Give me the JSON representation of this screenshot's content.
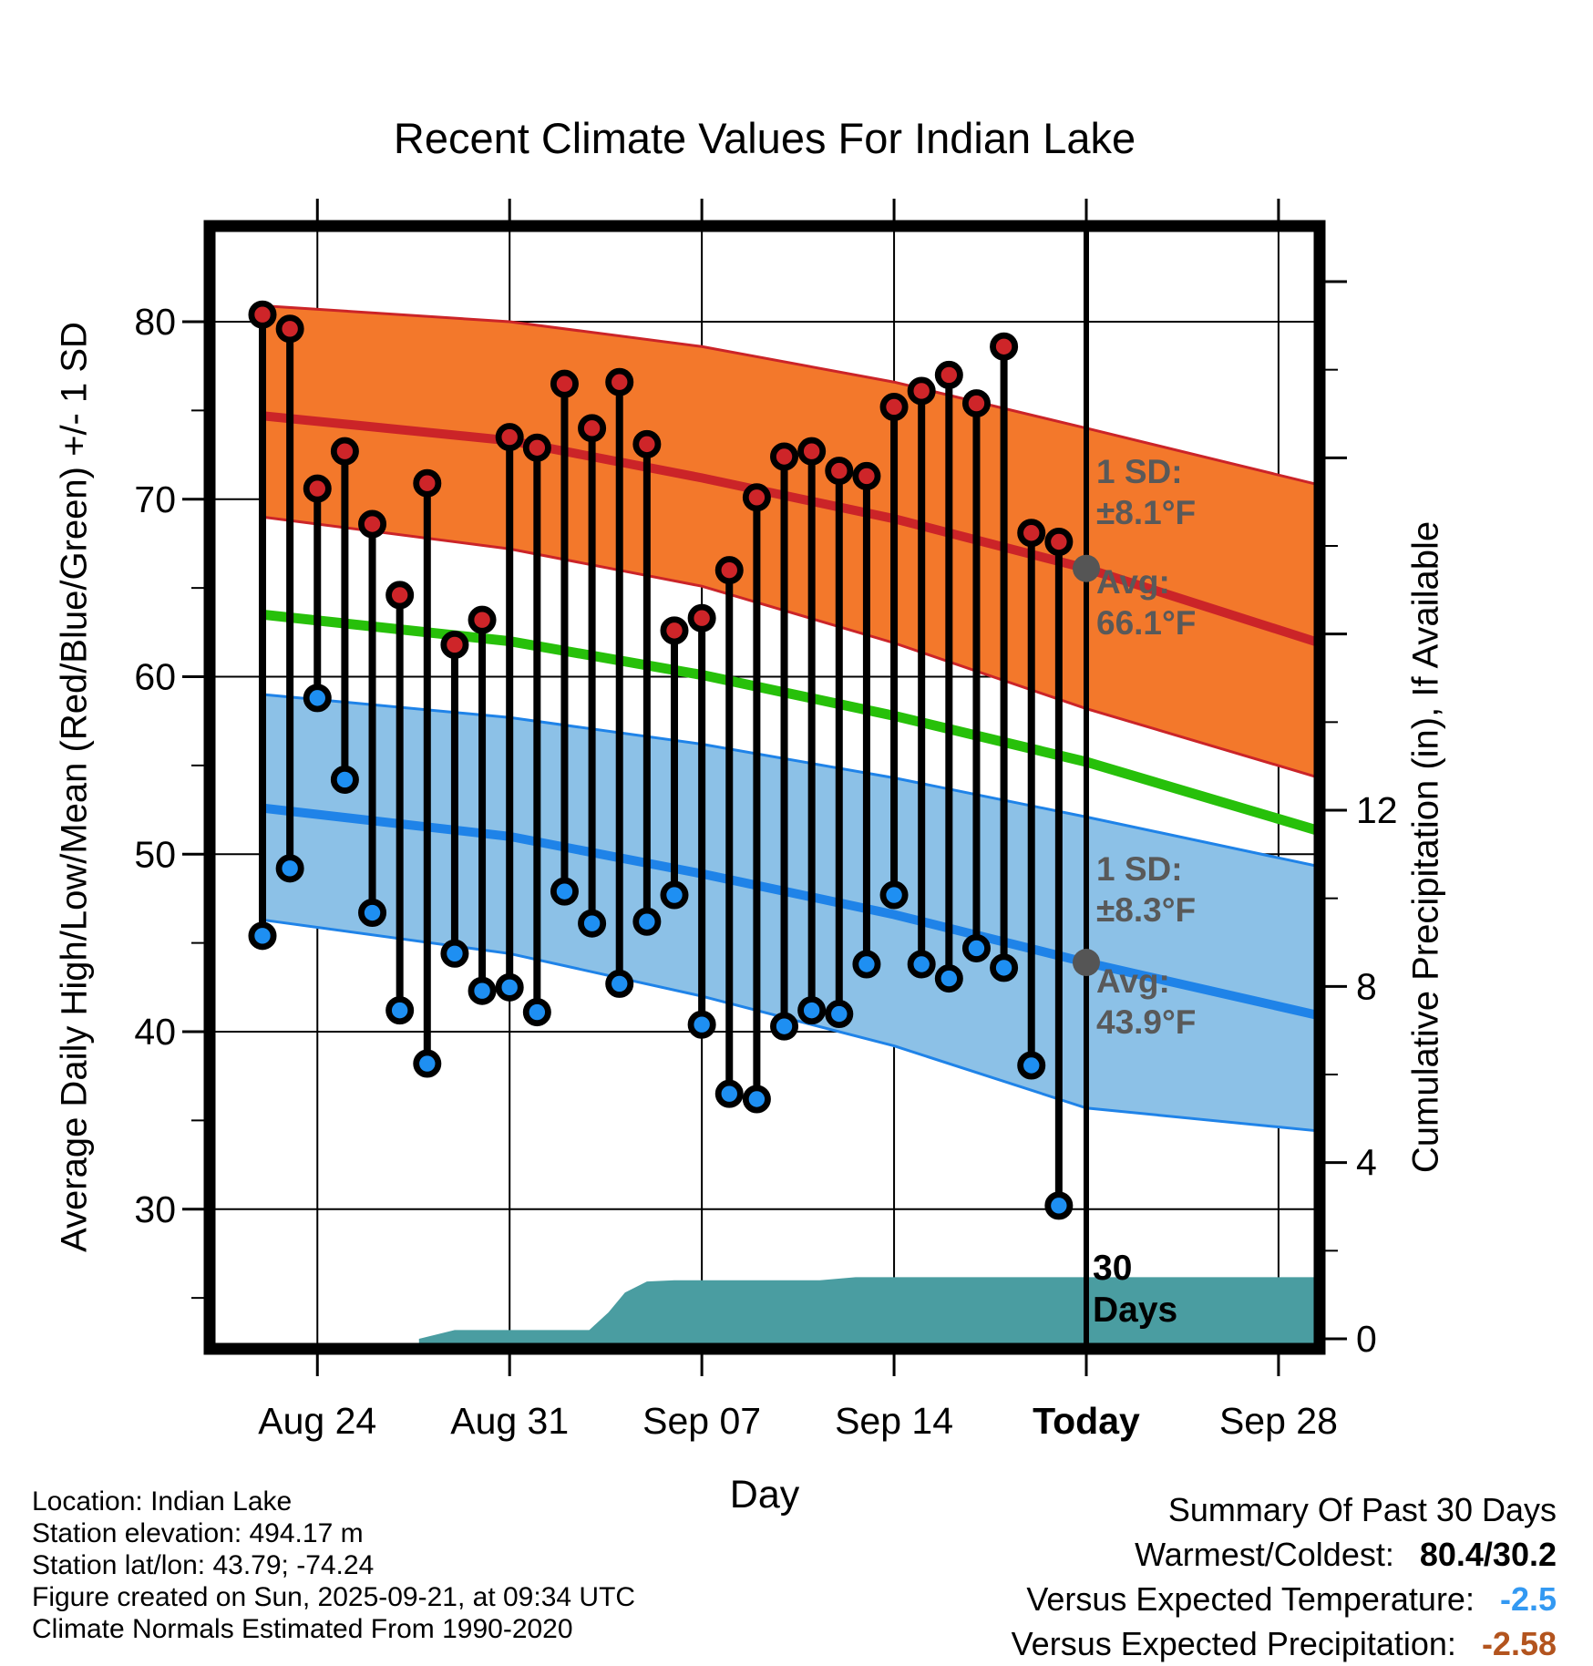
{
  "title": "Recent Climate Values For Indian Lake",
  "axes": {
    "x": {
      "label": "Day"
    },
    "y_left": {
      "label": "Average Daily High/Low/Mean (Red/Blue/Green) +/- 1 SD"
    },
    "y_right": {
      "label": "Cumulative Precipitation (in), If Available"
    }
  },
  "annotations": {
    "high": {
      "sd_label": "1 SD:",
      "sd_value": "±8.1°F",
      "avg_label": "Avg:",
      "avg_value": "66.1°F",
      "avg_num": 66.1
    },
    "low": {
      "sd_label": "1 SD:",
      "sd_value": "±8.3°F",
      "avg_label": "Avg:",
      "avg_value": "43.9°F",
      "avg_num": 43.9
    },
    "period": {
      "line1": "30",
      "line2": "Days"
    }
  },
  "footer": {
    "lines": [
      "Location: Indian Lake",
      "Station elevation: 494.17 m",
      "Station lat/lon: 43.79; -74.24",
      "Figure created on Sun, 2025-09-21, at 09:34 UTC",
      "Climate Normals Estimated From 1990-2020"
    ]
  },
  "summary": {
    "title": "Summary Of Past 30 Days",
    "rows": [
      {
        "label": "Warmest/Coldest:",
        "value": "80.4/30.2",
        "color": "#000000"
      },
      {
        "label": "Versus Expected Temperature:",
        "value": "-2.5",
        "color": "#3399F2"
      },
      {
        "label": "Versus Expected Precipitation:",
        "value": "-2.58",
        "color": "#B3541E"
      }
    ]
  },
  "colors": {
    "high_band_fill": "#F3782B",
    "high_line": "#CB2428",
    "high_dot": "#CE2529",
    "low_band_fill": "#8CC1E7",
    "low_line": "#1F83E8",
    "low_dot": "#1E8FF2",
    "mean_line": "#27C00A",
    "precip_fill": "#4A9DA1",
    "stem": "#000000",
    "gridline": "#000000",
    "avg_marker": "#555555"
  },
  "chart_data": {
    "type": "combo",
    "title": "Recent Climate Values For Indian Lake",
    "xlabel": "Day",
    "ylabel_left": "Average Daily High/Low/Mean (Red/Blue/Green) +/- 1 SD",
    "ylabel_right": "Cumulative Precipitation (in), If Available",
    "ylim_temp": [
      22,
      85.4
    ],
    "yticks_left": [
      30,
      40,
      50,
      60,
      70,
      80
    ],
    "yticks_left_minor": [
      25,
      35,
      45,
      55,
      65,
      75
    ],
    "yticks_right": [
      0,
      4,
      8,
      12
    ],
    "yticks_right_minor": [
      2,
      6,
      10,
      14,
      18,
      22
    ],
    "yticks_right_unlabeled": [
      16,
      20,
      24
    ],
    "x_ticks": [
      {
        "label": "Aug 24",
        "day": 2
      },
      {
        "label": "Aug 31",
        "day": 9
      },
      {
        "label": "Sep 07",
        "day": 16
      },
      {
        "label": "Sep 14",
        "day": 23
      },
      {
        "label": "Today",
        "day": 30
      },
      {
        "label": "Sep 28",
        "day": 37
      }
    ],
    "today_index": 30,
    "dates": [
      "Aug 22",
      "Aug 23",
      "Aug 24",
      "Aug 25",
      "Aug 26",
      "Aug 27",
      "Aug 28",
      "Aug 29",
      "Aug 30",
      "Aug 31",
      "Sep 01",
      "Sep 02",
      "Sep 03",
      "Sep 04",
      "Sep 05",
      "Sep 06",
      "Sep 07",
      "Sep 08",
      "Sep 09",
      "Sep 10",
      "Sep 11",
      "Sep 12",
      "Sep 13",
      "Sep 14",
      "Sep 15",
      "Sep 16",
      "Sep 17",
      "Sep 18",
      "Sep 19",
      "Sep 20"
    ],
    "series": [
      {
        "name": "daily-high",
        "values": [
          80.4,
          79.6,
          70.6,
          72.7,
          68.6,
          64.6,
          70.9,
          61.8,
          63.2,
          73.5,
          72.9,
          76.5,
          74.0,
          76.6,
          73.1,
          62.6,
          63.3,
          66.0,
          70.1,
          72.4,
          72.7,
          71.6,
          71.3,
          75.2,
          76.1,
          77.0,
          75.4,
          78.6,
          68.1,
          67.6
        ]
      },
      {
        "name": "daily-low",
        "values": [
          45.4,
          49.2,
          58.8,
          54.2,
          46.7,
          41.2,
          38.2,
          44.4,
          42.3,
          42.5,
          41.1,
          47.9,
          46.1,
          42.7,
          46.2,
          47.7,
          40.4,
          36.5,
          36.2,
          40.3,
          41.2,
          41.0,
          43.8,
          47.7,
          43.8,
          43.0,
          44.7,
          43.6,
          38.1,
          30.2
        ]
      }
    ],
    "climatology": {
      "control_days": [
        0,
        9,
        16,
        23,
        30,
        38.5
      ],
      "high_upper": [
        80.9,
        80.0,
        78.6,
        76.6,
        74.0,
        70.8
      ],
      "high_mean": [
        74.7,
        73.3,
        71.2,
        68.9,
        66.1,
        61.9
      ],
      "high_lower": [
        69.0,
        67.2,
        65.1,
        61.9,
        58.2,
        54.3
      ],
      "mean_green": [
        63.5,
        62.0,
        60.1,
        57.8,
        55.2,
        51.3
      ],
      "low_upper": [
        59.0,
        57.7,
        56.2,
        54.3,
        52.1,
        49.3
      ],
      "low_mean": [
        52.6,
        51.0,
        48.9,
        46.6,
        43.9,
        40.9
      ],
      "low_lower": [
        46.3,
        44.4,
        42.0,
        39.2,
        35.7,
        34.4
      ]
    },
    "precip_cumulative": {
      "days": [
        5.7,
        7,
        11.9,
        12.6,
        13.2,
        14,
        15,
        20.3,
        21.6,
        38.5
      ],
      "values": [
        0,
        0.2,
        0.2,
        0.6,
        1.05,
        1.3,
        1.33,
        1.33,
        1.4,
        1.4
      ]
    }
  }
}
